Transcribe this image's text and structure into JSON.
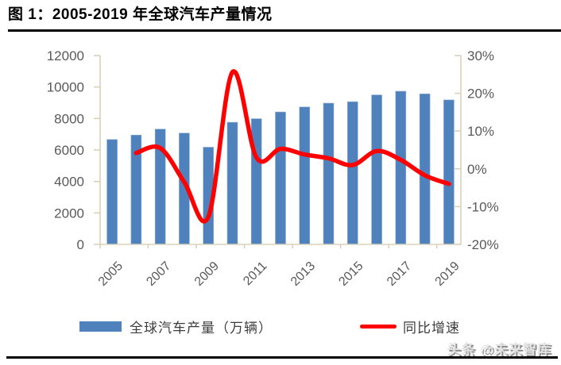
{
  "header": {
    "title": "图 1：2005-2019 年全球汽车产量情况"
  },
  "legend": [
    {
      "label": "全球汽车产量（万辆）",
      "swatch": "bar",
      "color": "#4f81bd"
    },
    {
      "label": "同比增速",
      "swatch": "line",
      "color": "#ff0000"
    }
  ],
  "watermark": "头条 @未来智库",
  "colors": {
    "bar": "#4f81bd",
    "bar_edge": "#8fafd4",
    "line": "#ff0000",
    "axis_line": "#d9d2bb",
    "tick_label": "#595959",
    "title_rule": "#000000"
  },
  "chart_data": {
    "type": "combo-bar-line",
    "title": "2005-2019 年全球汽车产量情况",
    "categories": [
      2005,
      2006,
      2007,
      2008,
      2009,
      2010,
      2011,
      2012,
      2013,
      2014,
      2015,
      2016,
      2017,
      2018,
      2019
    ],
    "series": [
      {
        "name": "全球汽车产量（万辆）",
        "type": "bar",
        "axis": "left",
        "color": "#4f81bd",
        "values": [
          6665,
          6946,
          7327,
          7073,
          6176,
          7758,
          7989,
          8414,
          8731,
          8977,
          9068,
          9498,
          9730,
          9563,
          9179
        ]
      },
      {
        "name": "同比增速",
        "type": "line",
        "axis": "right",
        "color": "#ff0000",
        "smooth": true,
        "values": [
          null,
          4.2,
          5.5,
          -3.5,
          -12.7,
          25.6,
          3.0,
          5.3,
          3.8,
          2.8,
          1.0,
          4.7,
          2.4,
          -1.7,
          -4.0
        ]
      }
    ],
    "y_left": {
      "min": 0,
      "max": 12000,
      "step": 2000,
      "suffix": ""
    },
    "y_right": {
      "min": -20,
      "max": 30,
      "step": 10,
      "suffix": "%"
    },
    "x_label_interval": 2,
    "x_tick_labels_visible": [
      "2005",
      "2007",
      "2009",
      "2011",
      "2013",
      "2015",
      "2017",
      "2019"
    ],
    "grid": false,
    "legend_position": "bottom"
  }
}
